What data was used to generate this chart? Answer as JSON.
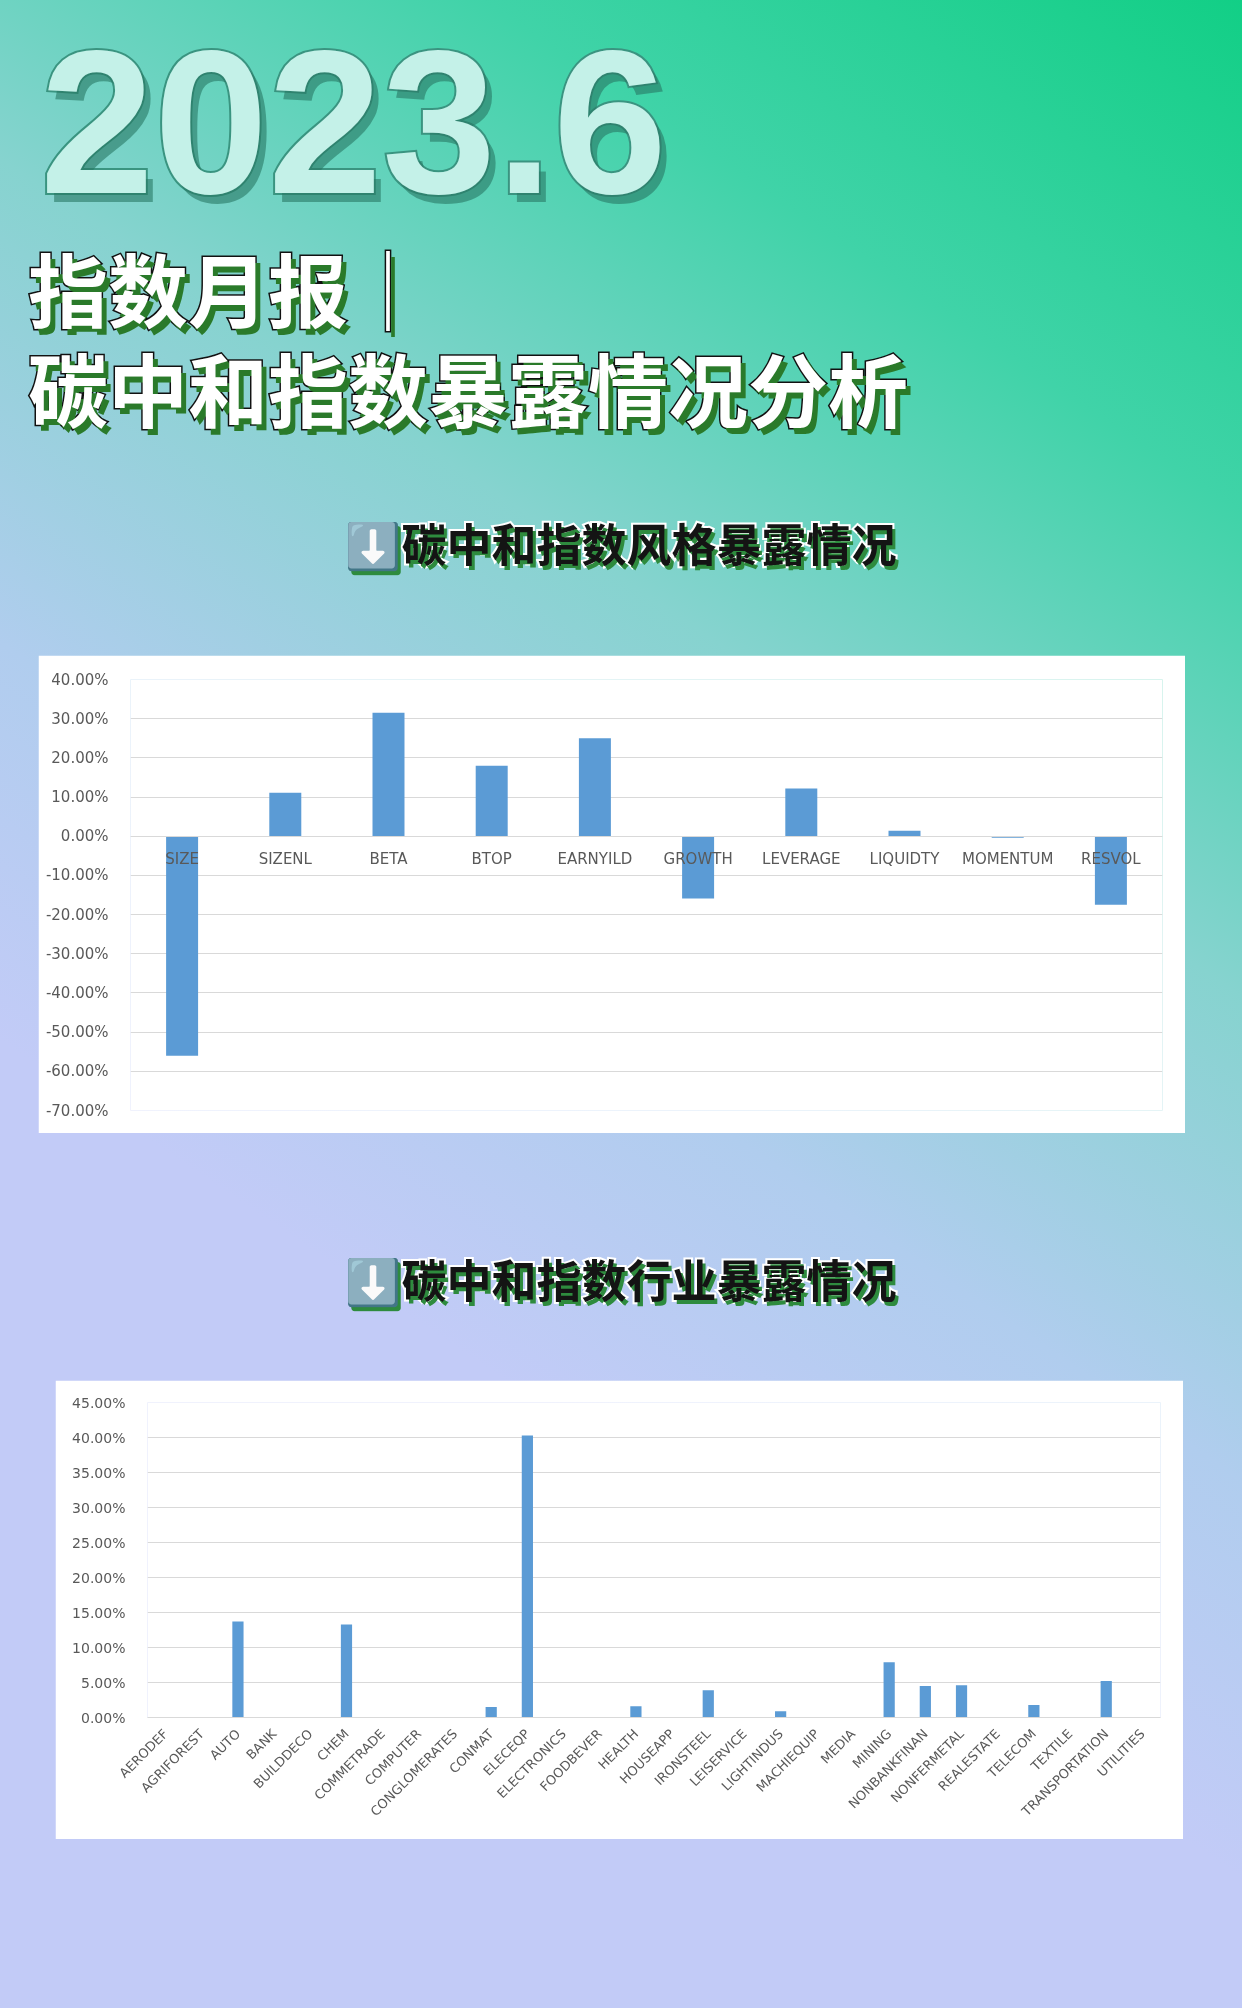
{
  "chart_data": [
    {
      "type": "other",
      "title": "指数月报｜",
      "subtitle": "碳中和指数暴露情况分析",
      "annotations": [
        "2023.6"
      ]
    },
    {
      "type": "bar",
      "title": "⬇️碳中和指数风格暴露情况",
      "categories": [
        "SIZE",
        "SIZENL",
        "BETA",
        "BTOP",
        "EARNYILD",
        "GROWTH",
        "LEVERAGE",
        "LIQUIDTY",
        "MOMENTUM",
        "RESVOL"
      ],
      "values": [
        -56.0,
        11.1,
        31.5,
        18.0,
        25.0,
        -15.9,
        12.2,
        1.4,
        -0.4,
        -17.5
      ],
      "color": "#5b9bd5",
      "ylim": [
        -70,
        40
      ],
      "yticks": [
        {
          "value": -70,
          "label": "-70.00%"
        },
        {
          "value": -60,
          "label": "-60.00%"
        },
        {
          "value": -50,
          "label": "-50.00%"
        },
        {
          "value": -40,
          "label": "-40.00%"
        },
        {
          "value": -30,
          "label": "-30.00%"
        },
        {
          "value": -20,
          "label": "-20.00%"
        },
        {
          "value": -10,
          "label": "-10.00%"
        },
        {
          "value": 0,
          "label": "0.00%"
        },
        {
          "value": 10,
          "label": "10.00%"
        },
        {
          "value": 20,
          "label": "20.00%"
        },
        {
          "value": 30,
          "label": "30.00%"
        },
        {
          "value": 40,
          "label": "40.00%"
        }
      ],
      "grid": "y"
    },
    {
      "type": "bar",
      "title": "⬇️碳中和指数行业暴露情况",
      "categories": [
        "AERODEF",
        "AGRIFOREST",
        "AUTO",
        "BANK",
        "BUILDDECO",
        "CHEM",
        "COMMETRADE",
        "COMPUTER",
        "CONGLOMERATES",
        "CONMAT",
        "ELECEQP",
        "ELECTRONICS",
        "FOODBEVER",
        "HEALTH",
        "HOUSEAPP",
        "IRONSTEEL",
        "LEISERVICE",
        "LIGHTINDUS",
        "MACHIEQUIP",
        "MEDIA",
        "MINING",
        "NONBANKFINAN",
        "NONFERMETAL",
        "REALESTATE",
        "TELECOM",
        "TEXTILE",
        "TRANSPORTATION",
        "UTILITIES"
      ],
      "values": [
        null,
        null,
        13.7,
        null,
        null,
        13.3,
        null,
        null,
        null,
        1.5,
        40.3,
        null,
        null,
        1.6,
        null,
        3.9,
        null,
        0.9,
        null,
        null,
        7.9,
        4.5,
        4.6,
        null,
        1.8,
        null,
        5.2,
        null
      ],
      "color": "#5b9bd5",
      "ylim": [
        0,
        45
      ],
      "yticks": [
        {
          "value": 0,
          "label": "0.00%"
        },
        {
          "value": 5,
          "label": "5.00%"
        },
        {
          "value": 10,
          "label": "10.00%"
        },
        {
          "value": 15,
          "label": "15.00%"
        },
        {
          "value": 20,
          "label": "20.00%"
        },
        {
          "value": 25,
          "label": "25.00%"
        },
        {
          "value": 30,
          "label": "30.00%"
        },
        {
          "value": 35,
          "label": "35.00%"
        },
        {
          "value": 40,
          "label": "40.00%"
        },
        {
          "value": 45,
          "label": "45.00%"
        }
      ],
      "grid": "y"
    }
  ]
}
